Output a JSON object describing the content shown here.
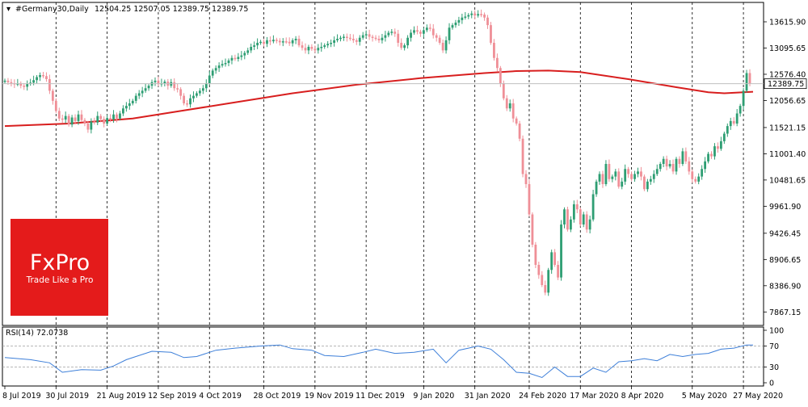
{
  "header": {
    "symbol": "#Germany30,Daily",
    "ohlc": "12504.25 12507.05 12389.75 12389.75"
  },
  "logo": {
    "name": "FxPro",
    "tagline": "Trade Like a Pro",
    "color": "#e41b1b"
  },
  "colors": {
    "bull": "#2e9e73",
    "bear": "#ef8f97",
    "ma": "#d81e1e",
    "rsi": "#3d7fd9",
    "price_tag_bg": "#ffffff"
  },
  "chart_data": [
    {
      "type": "candlestick",
      "title": "#Germany30,Daily",
      "ylim": [
        7600,
        14000
      ],
      "y_ticks": [
        13615.9,
        13095.65,
        12576.4,
        12056.65,
        11521.15,
        11001.4,
        10481.65,
        9961.9,
        9426.45,
        8906.65,
        8386.9,
        7867.15
      ],
      "y_tick_labels": [
        "13615.90",
        "13095.65",
        "12576.40",
        "12056.65",
        "11521.15",
        "11001.40",
        "10481.65",
        "9961.90",
        "9426.45",
        "8906.65",
        "8386.90",
        "7867.15"
      ],
      "current_price": 12389.75,
      "current_price_label": "12389.75",
      "x_labels": [
        "8 Jul 2019",
        "30 Jul 2019",
        "21 Aug 2019",
        "12 Sep 2019",
        "4 Oct 2019",
        "28 Oct 2019",
        "19 Nov 2019",
        "11 Dec 2019",
        "9 Jan 2020",
        "31 Jan 2020",
        "24 Feb 2020",
        "17 Mar 2020",
        "8 Apr 2020",
        "5 May 2020",
        "27 May 2020"
      ],
      "x_label_bar_index": [
        0,
        16,
        32,
        48,
        64,
        81,
        97,
        113,
        131,
        147,
        164,
        180,
        196,
        215,
        231
      ],
      "grid": "vertical dashed",
      "closes": [
        12450,
        12420,
        12400,
        12380,
        12395,
        12350,
        12330,
        12390,
        12410,
        12460,
        12520,
        12560,
        12540,
        12480,
        12250,
        12050,
        11850,
        11700,
        11680,
        11750,
        11580,
        11720,
        11650,
        11780,
        11670,
        11600,
        11480,
        11640,
        11620,
        11750,
        11690,
        11600,
        11710,
        11680,
        11780,
        11700,
        11800,
        11900,
        11950,
        12000,
        12050,
        12150,
        12200,
        12250,
        12300,
        12350,
        12420,
        12450,
        12380,
        12400,
        12430,
        12350,
        12420,
        12300,
        12280,
        12150,
        12000,
        11980,
        12100,
        12150,
        12200,
        12250,
        12300,
        12400,
        12550,
        12650,
        12700,
        12750,
        12780,
        12800,
        12850,
        12900,
        12880,
        12920,
        12950,
        13000,
        13050,
        13120,
        13150,
        13200,
        13220,
        13180,
        13250,
        13230,
        13260,
        13240,
        13210,
        13230,
        13220,
        13190,
        13250,
        13280,
        13150,
        13100,
        13050,
        13120,
        13080,
        13050,
        13100,
        13120,
        13150,
        13180,
        13200,
        13250,
        13280,
        13300,
        13320,
        13300,
        13280,
        13250,
        13220,
        13300,
        13350,
        13370,
        13320,
        13300,
        13280,
        13250,
        13300,
        13350,
        13400,
        13420,
        13380,
        13200,
        13100,
        13150,
        13300,
        13400,
        13450,
        13420,
        13380,
        13450,
        13500,
        13480,
        13350,
        13300,
        13200,
        13050,
        13250,
        13500,
        13550,
        13600,
        13650,
        13700,
        13720,
        13750,
        13780,
        13740,
        13770,
        13760,
        13700,
        13550,
        13200,
        12900,
        12700,
        12400,
        12100,
        11900,
        12000,
        11700,
        11600,
        11300,
        10600,
        10400,
        9800,
        9200,
        8800,
        8600,
        8400,
        8250,
        8700,
        9050,
        8800,
        8550,
        9600,
        9900,
        9500,
        9700,
        10000,
        9900,
        9600,
        9800,
        9500,
        9700,
        10200,
        10450,
        10600,
        10400,
        10800,
        10500,
        10550,
        10650,
        10350,
        10450,
        10700,
        10600,
        10500,
        10600,
        10650,
        10550,
        10300,
        10450,
        10500,
        10600,
        10700,
        10800,
        10900,
        10750,
        10800,
        10650,
        10900,
        10800,
        11050,
        10850,
        10650,
        10500,
        10450,
        10550,
        10700,
        10850,
        11000,
        10950,
        11150,
        11100,
        11250,
        11400,
        11550,
        11650,
        11600,
        11800,
        11950,
        12250,
        12600,
        12389.75
      ],
      "ma_points": [
        [
          0,
          11550
        ],
        [
          20,
          11600
        ],
        [
          40,
          11700
        ],
        [
          56,
          11860
        ],
        [
          70,
          12000
        ],
        [
          90,
          12200
        ],
        [
          110,
          12370
        ],
        [
          130,
          12500
        ],
        [
          150,
          12600
        ],
        [
          160,
          12640
        ],
        [
          170,
          12650
        ],
        [
          180,
          12620
        ],
        [
          195,
          12480
        ],
        [
          210,
          12320
        ],
        [
          220,
          12220
        ],
        [
          225,
          12200
        ],
        [
          234,
          12230
        ]
      ]
    },
    {
      "type": "line",
      "title": "RSI(14) 72.0738",
      "ylim": [
        0,
        100
      ],
      "y_ticks": [
        100,
        70,
        30,
        0
      ],
      "y_tick_labels": [
        "100",
        "70",
        "30",
        "0"
      ],
      "reference_lines": [
        70,
        30
      ],
      "points": [
        [
          0,
          48
        ],
        [
          8,
          44
        ],
        [
          14,
          38
        ],
        [
          18,
          20
        ],
        [
          24,
          25
        ],
        [
          30,
          24
        ],
        [
          34,
          32
        ],
        [
          38,
          44
        ],
        [
          46,
          60
        ],
        [
          52,
          58
        ],
        [
          56,
          48
        ],
        [
          60,
          50
        ],
        [
          66,
          62
        ],
        [
          72,
          66
        ],
        [
          80,
          70
        ],
        [
          86,
          72
        ],
        [
          90,
          65
        ],
        [
          96,
          62
        ],
        [
          100,
          52
        ],
        [
          106,
          50
        ],
        [
          112,
          58
        ],
        [
          116,
          64
        ],
        [
          122,
          56
        ],
        [
          128,
          58
        ],
        [
          134,
          64
        ],
        [
          138,
          38
        ],
        [
          142,
          62
        ],
        [
          148,
          70
        ],
        [
          152,
          64
        ],
        [
          156,
          44
        ],
        [
          160,
          20
        ],
        [
          164,
          18
        ],
        [
          168,
          10
        ],
        [
          172,
          30
        ],
        [
          176,
          12
        ],
        [
          180,
          12
        ],
        [
          184,
          28
        ],
        [
          188,
          20
        ],
        [
          192,
          40
        ],
        [
          196,
          42
        ],
        [
          200,
          46
        ],
        [
          204,
          42
        ],
        [
          208,
          54
        ],
        [
          212,
          50
        ],
        [
          216,
          54
        ],
        [
          220,
          56
        ],
        [
          224,
          64
        ],
        [
          228,
          66
        ],
        [
          232,
          72
        ],
        [
          234,
          72
        ]
      ]
    }
  ]
}
